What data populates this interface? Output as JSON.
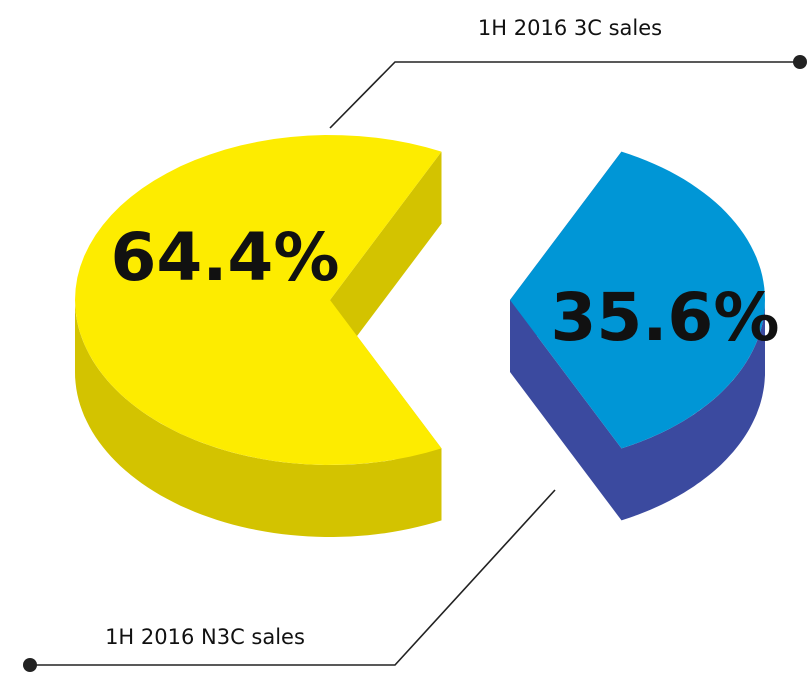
{
  "chart_data": {
    "type": "pie",
    "categories": [
      "1H 2016 3C sales",
      "1H 2016 N3C sales"
    ],
    "values": [
      64.4,
      35.6
    ],
    "value_labels": [
      "64.4%",
      "35.6%"
    ],
    "colors": [
      "#fdec00",
      "#0096d6"
    ],
    "side_colors": [
      "#d3c300",
      "#3b4a9f"
    ]
  }
}
